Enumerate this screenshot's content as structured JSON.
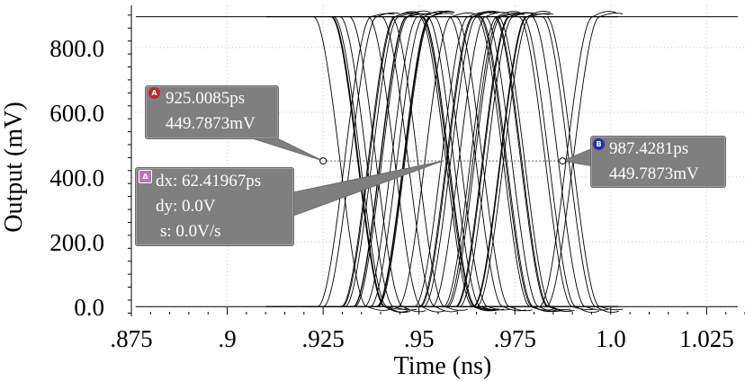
{
  "chart_data": {
    "type": "line",
    "title": "",
    "xlabel": "Time (ns)",
    "ylabel": "Output (mV)",
    "xlim": [
      0.875,
      1.035
    ],
    "ylim": [
      -30,
      930
    ],
    "x_ticks": [
      {
        "value": 0.875,
        "label": ".875"
      },
      {
        "value": 0.9,
        "label": ".9"
      },
      {
        "value": 0.925,
        "label": ".925"
      },
      {
        "value": 0.95,
        "label": ".95"
      },
      {
        "value": 0.975,
        "label": ".975"
      },
      {
        "value": 1.0,
        "label": "1.0"
      },
      {
        "value": 1.025,
        "label": "1.025"
      }
    ],
    "y_ticks": [
      {
        "value": 0,
        "label": "0.0"
      },
      {
        "value": 200,
        "label": "200.0"
      },
      {
        "value": 400,
        "label": "400.0"
      },
      {
        "value": 600,
        "label": "600.0"
      },
      {
        "value": 800,
        "label": "800.0"
      }
    ],
    "grid": true,
    "eye_diagram": {
      "low_level_mV": 0,
      "high_level_mV": 895,
      "x_start_ns": 0.91,
      "x_end_ns": 1.002,
      "transition_start_range_ns": [
        0.922,
        0.986
      ],
      "transition_duration_ns": 0.014,
      "trace_count": 60
    },
    "markers": [
      {
        "id": "A",
        "x_ns": 0.9250085,
        "y_mV": 449.7873
      },
      {
        "id": "B",
        "x_ns": 0.9874281,
        "y_mV": 449.7873
      }
    ]
  },
  "marker_a": {
    "badge": "A",
    "color": "#c0282f",
    "line1": "925.0085ps",
    "line2": "449.7873mV"
  },
  "marker_b": {
    "badge": "B",
    "color": "#2030b0",
    "line1": "987.4281ps",
    "line2": "449.7873mV"
  },
  "delta_box": {
    "badge": "Δ",
    "color": "#c070c0",
    "dx": "dx: 62.41967ps",
    "dy": "dy: 0.0V",
    "s": "s: 0.0V/s"
  }
}
